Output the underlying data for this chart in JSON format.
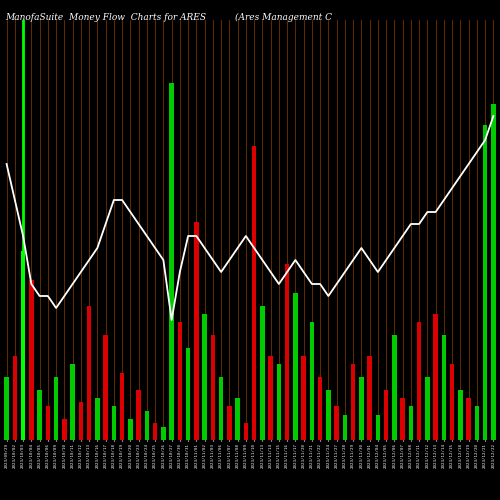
{
  "title": "ManofaSuite  Money Flow  Charts for ARES",
  "subtitle": "(Ares Management C",
  "background_color": "#000000",
  "line_color": "#ffffff",
  "highlight_line_color": "#00ff00",
  "red_color": "#dd0000",
  "green_color": "#00cc00",
  "orange_line_color": "#cc6600",
  "n_bars": 60,
  "bar_heights": [
    1.5,
    2.0,
    4.5,
    3.8,
    1.2,
    0.8,
    1.5,
    0.5,
    1.8,
    0.9,
    3.2,
    1.0,
    2.5,
    0.8,
    1.6,
    0.5,
    1.2,
    0.7,
    0.4,
    0.3,
    8.5,
    2.8,
    2.2,
    5.2,
    3.0,
    2.5,
    1.5,
    0.8,
    1.0,
    0.4,
    7.0,
    3.2,
    2.0,
    1.8,
    4.2,
    3.5,
    2.0,
    2.8,
    1.5,
    1.2,
    0.8,
    0.6,
    1.8,
    1.5,
    2.0,
    0.6,
    1.2,
    2.5,
    1.0,
    0.8,
    2.8,
    1.5,
    3.0,
    2.5,
    1.8,
    1.2,
    1.0,
    0.8,
    7.5,
    8.0
  ],
  "bar_colors": [
    "green",
    "red",
    "green",
    "red",
    "green",
    "red",
    "green",
    "red",
    "green",
    "red",
    "red",
    "green",
    "red",
    "green",
    "red",
    "green",
    "red",
    "green",
    "red",
    "green",
    "green",
    "red",
    "green",
    "red",
    "green",
    "red",
    "green",
    "red",
    "green",
    "red",
    "red",
    "green",
    "red",
    "green",
    "red",
    "green",
    "red",
    "green",
    "red",
    "green",
    "red",
    "green",
    "red",
    "green",
    "red",
    "green",
    "red",
    "green",
    "red",
    "green",
    "red",
    "green",
    "red",
    "green",
    "red",
    "green",
    "red",
    "green",
    "green",
    "green"
  ],
  "line_values": [
    0.68,
    0.65,
    0.62,
    0.58,
    0.57,
    0.57,
    0.56,
    0.57,
    0.58,
    0.59,
    0.6,
    0.61,
    0.63,
    0.65,
    0.65,
    0.64,
    0.63,
    0.62,
    0.61,
    0.6,
    0.55,
    0.59,
    0.62,
    0.62,
    0.61,
    0.6,
    0.59,
    0.6,
    0.61,
    0.62,
    0.61,
    0.6,
    0.59,
    0.58,
    0.59,
    0.6,
    0.59,
    0.58,
    0.58,
    0.57,
    0.58,
    0.59,
    0.6,
    0.61,
    0.6,
    0.59,
    0.6,
    0.61,
    0.62,
    0.63,
    0.63,
    0.64,
    0.64,
    0.65,
    0.66,
    0.67,
    0.68,
    0.69,
    0.7,
    0.72
  ],
  "highlight_bar_index": 2,
  "title_fontsize": 7,
  "tick_fontsize": 3.5,
  "bar_ylim": [
    0,
    10
  ],
  "line_ylim": [
    0.45,
    0.8
  ],
  "date_labels": [
    "2023/09/29",
    "2023/10/02",
    "2023/10/03",
    "2023/10/04",
    "2023/10/05",
    "2023/10/06",
    "2023/10/09",
    "2023/10/10",
    "2023/10/11",
    "2023/10/12",
    "2023/10/13",
    "2023/10/16",
    "2023/10/17",
    "2023/10/18",
    "2023/10/19",
    "2023/10/20",
    "2023/10/23",
    "2023/10/24",
    "2023/10/25",
    "2023/10/26",
    "2023/10/27",
    "2023/10/30",
    "2023/10/31",
    "2023/11/01",
    "2023/11/02",
    "2023/11/03",
    "2023/11/06",
    "2023/11/07",
    "2023/11/08",
    "2023/11/09",
    "2023/11/10",
    "2023/11/13",
    "2023/11/14",
    "2023/11/15",
    "2023/11/16",
    "2023/11/17",
    "2023/11/20",
    "2023/11/21",
    "2023/11/22",
    "2023/11/24",
    "2023/11/27",
    "2023/11/28",
    "2023/11/29",
    "2023/11/30",
    "2023/12/01",
    "2023/12/04",
    "2023/12/05",
    "2023/12/06",
    "2023/12/07",
    "2023/12/08",
    "2023/12/11",
    "2023/12/12",
    "2023/12/13",
    "2023/12/14",
    "2023/12/15",
    "2023/12/18",
    "2023/12/19",
    "2023/12/20",
    "2023/12/21",
    "2023/12/22"
  ]
}
